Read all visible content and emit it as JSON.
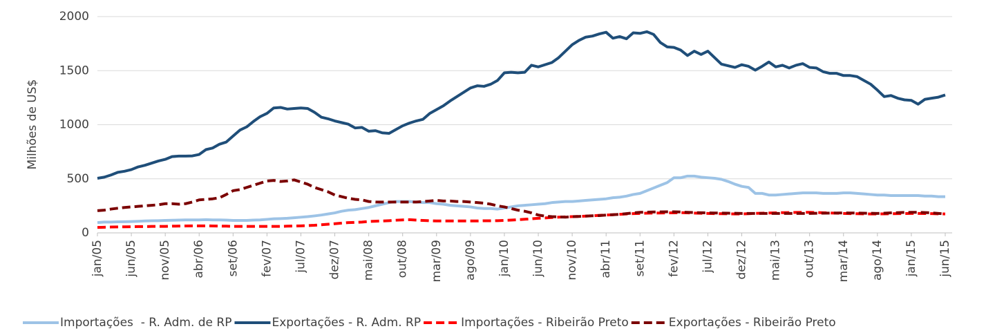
{
  "chart_data": {
    "type": "line",
    "y_label": "Milhões de US$",
    "ylim": [
      0,
      2000
    ],
    "yticks": [
      0,
      500,
      1000,
      1500,
      2000
    ],
    "grid": true,
    "legend": "bottom",
    "categories": [
      "jan/05",
      null,
      null,
      null,
      null,
      "jun/05",
      null,
      null,
      null,
      null,
      "nov/05",
      null,
      null,
      null,
      null,
      "abr/06",
      null,
      null,
      null,
      null,
      "set/06",
      null,
      null,
      null,
      null,
      "fev/07",
      null,
      null,
      null,
      null,
      "jul/07",
      null,
      null,
      null,
      null,
      "dez/07",
      null,
      null,
      null,
      null,
      "mai/08",
      null,
      null,
      null,
      null,
      "out/08",
      null,
      null,
      null,
      null,
      "mar/09",
      null,
      null,
      null,
      null,
      "ago/09",
      null,
      null,
      null,
      null,
      "jan/10",
      null,
      null,
      null,
      null,
      "jun/10",
      null,
      null,
      null,
      null,
      "nov/10",
      null,
      null,
      null,
      null,
      "abr/11",
      null,
      null,
      null,
      null,
      "set/11",
      null,
      null,
      null,
      null,
      "fev/12",
      null,
      null,
      null,
      null,
      "jul/12",
      null,
      null,
      null,
      null,
      "dez/12",
      null,
      null,
      null,
      null,
      "mai/13",
      null,
      null,
      null,
      null,
      "out/13",
      null,
      null,
      null,
      null,
      "mar/14",
      null,
      null,
      null,
      null,
      "ago/14",
      null,
      null,
      null,
      null,
      "jan/15",
      null,
      null,
      null,
      null,
      "jun/15"
    ],
    "series": [
      {
        "name": "Importações  - R. Adm. de RP",
        "color": "#9dc3e6",
        "dashed": false,
        "values": [
          95,
          100,
          100,
          102,
          103,
          105,
          107,
          110,
          112,
          113,
          115,
          117,
          118,
          120,
          120,
          120,
          122,
          120,
          120,
          118,
          115,
          115,
          115,
          118,
          120,
          125,
          130,
          132,
          135,
          140,
          145,
          150,
          157,
          165,
          175,
          185,
          200,
          210,
          215,
          225,
          235,
          250,
          265,
          280,
          290,
          290,
          290,
          285,
          280,
          280,
          270,
          265,
          255,
          250,
          245,
          240,
          230,
          225,
          225,
          220,
          230,
          240,
          250,
          255,
          260,
          265,
          270,
          280,
          285,
          290,
          290,
          295,
          300,
          305,
          310,
          315,
          325,
          330,
          340,
          355,
          365,
          390,
          415,
          440,
          465,
          510,
          510,
          525,
          525,
          515,
          510,
          505,
          495,
          475,
          450,
          430,
          420,
          365,
          365,
          350,
          350,
          355,
          360,
          365,
          370,
          370,
          370,
          365,
          365,
          365,
          370,
          370,
          365,
          360,
          355,
          350,
          350,
          345,
          345,
          345,
          345,
          345,
          340,
          340,
          335,
          335
        ]
      },
      {
        "name": "Exportações - R. Adm. RP",
        "color": "#1f4e79",
        "dashed": false,
        "values": [
          505,
          515,
          535,
          560,
          570,
          585,
          610,
          625,
          645,
          665,
          680,
          705,
          710,
          710,
          712,
          725,
          770,
          785,
          820,
          840,
          895,
          950,
          980,
          1030,
          1075,
          1105,
          1155,
          1160,
          1145,
          1150,
          1155,
          1150,
          1115,
          1070,
          1055,
          1035,
          1020,
          1005,
          970,
          975,
          940,
          945,
          925,
          920,
          955,
          990,
          1015,
          1035,
          1050,
          1105,
          1140,
          1175,
          1220,
          1260,
          1300,
          1340,
          1360,
          1355,
          1375,
          1410,
          1480,
          1485,
          1480,
          1485,
          1550,
          1535,
          1555,
          1575,
          1620,
          1680,
          1740,
          1780,
          1810,
          1820,
          1840,
          1855,
          1800,
          1815,
          1795,
          1850,
          1845,
          1860,
          1835,
          1760,
          1720,
          1715,
          1690,
          1640,
          1680,
          1650,
          1680,
          1620,
          1560,
          1545,
          1530,
          1555,
          1540,
          1505,
          1540,
          1580,
          1535,
          1550,
          1525,
          1550,
          1565,
          1530,
          1525,
          1490,
          1475,
          1475,
          1455,
          1455,
          1445,
          1410,
          1375,
          1320,
          1260,
          1270,
          1245,
          1230,
          1225,
          1190,
          1235,
          1245,
          1255,
          1275
        ]
      },
      {
        "name": "Importações - Ribeirão Preto",
        "color": "#ff0000",
        "dashed": true,
        "values": [
          50,
          52,
          54,
          55,
          56,
          57,
          58,
          58,
          60,
          60,
          60,
          62,
          63,
          64,
          65,
          65,
          65,
          64,
          63,
          62,
          60,
          60,
          60,
          60,
          60,
          60,
          60,
          60,
          62,
          63,
          65,
          67,
          70,
          75,
          80,
          85,
          90,
          95,
          97,
          100,
          105,
          108,
          110,
          113,
          117,
          120,
          122,
          118,
          115,
          112,
          110,
          110,
          110,
          110,
          110,
          110,
          110,
          112,
          112,
          113,
          115,
          118,
          122,
          126,
          130,
          135,
          138,
          142,
          145,
          148,
          150,
          152,
          155,
          158,
          162,
          165,
          168,
          172,
          175,
          178,
          180,
          182,
          183,
          184,
          185,
          185,
          187,
          185,
          183,
          181,
          180,
          178,
          177,
          176,
          175,
          175,
          177,
          180,
          182,
          184,
          185,
          187,
          188,
          189,
          190,
          190,
          188,
          186,
          184,
          182,
          180,
          178,
          177,
          176,
          175,
          175,
          176,
          177,
          178,
          179,
          180,
          180,
          179,
          178,
          176,
          175
        ]
      },
      {
        "name": "Exportações - Ribeirão Preto",
        "color": "#7b0000",
        "dashed": true,
        "values": [
          205,
          210,
          220,
          228,
          235,
          240,
          245,
          250,
          255,
          260,
          270,
          270,
          265,
          270,
          285,
          305,
          310,
          315,
          325,
          355,
          390,
          400,
          420,
          440,
          460,
          480,
          485,
          475,
          480,
          490,
          470,
          450,
          420,
          400,
          380,
          350,
          335,
          320,
          310,
          305,
          290,
          285,
          285,
          285,
          285,
          285,
          285,
          285,
          290,
          295,
          300,
          295,
          295,
          290,
          290,
          285,
          280,
          275,
          265,
          250,
          240,
          225,
          210,
          200,
          185,
          165,
          155,
          150,
          148,
          145,
          150,
          152,
          155,
          158,
          160,
          165,
          168,
          172,
          178,
          185,
          190,
          192,
          193,
          194,
          195,
          195,
          193,
          190,
          188,
          186,
          185,
          184,
          183,
          182,
          181,
          180,
          180,
          180,
          180,
          180,
          180,
          180,
          180,
          180,
          180,
          180,
          181,
          182,
          183,
          184,
          185,
          184,
          183,
          182,
          181,
          180,
          182,
          185,
          187,
          189,
          190,
          190,
          188,
          185,
          180,
          175
        ]
      }
    ]
  }
}
